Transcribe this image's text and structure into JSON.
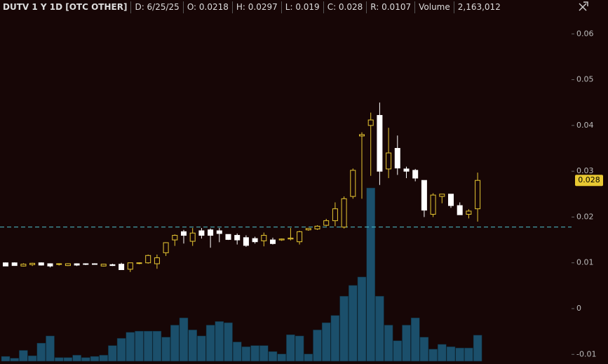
{
  "chart_data": {
    "type": "candlestick",
    "header": [
      "DUTV 1 Y 1D [OTC OTHER]",
      "D: 6/25/25",
      "O: 0.0218",
      "H: 0.0297",
      "L: 0.019",
      "C: 0.028",
      "R: 0.0107",
      "Volume",
      "2,163,012"
    ],
    "open": [
      0.01,
      0.01,
      0.0093,
      0.0096,
      0.01,
      0.0098,
      0.0098,
      0.0094,
      0.0098,
      0.0098,
      0.0098,
      0.0093,
      0.0096,
      0.0097,
      0.0086,
      0.0099,
      0.01,
      0.0098,
      0.0122,
      0.015,
      0.0168,
      0.0147,
      0.017,
      0.0172,
      0.017,
      0.0162,
      0.016,
      0.0155,
      0.0153,
      0.0148,
      0.015,
      0.015,
      0.0152,
      0.0146,
      0.0172,
      0.0174,
      0.0182,
      0.0192,
      0.0178,
      0.0245,
      0.0377,
      0.04,
      0.0422,
      0.0305,
      0.035,
      0.0305,
      0.0302,
      0.028,
      0.0206,
      0.0245,
      0.025,
      0.0225,
      0.0206,
      0.0218
    ],
    "high": [
      0.0101,
      0.0101,
      0.0099,
      0.01,
      0.0101,
      0.0099,
      0.0099,
      0.0099,
      0.0099,
      0.0099,
      0.0099,
      0.0098,
      0.0098,
      0.01,
      0.01,
      0.0101,
      0.0118,
      0.0118,
      0.0145,
      0.0162,
      0.0172,
      0.0176,
      0.0176,
      0.0175,
      0.0176,
      0.0162,
      0.0164,
      0.016,
      0.0157,
      0.0166,
      0.0155,
      0.0153,
      0.0176,
      0.017,
      0.0175,
      0.0182,
      0.0196,
      0.0232,
      0.0245,
      0.0306,
      0.0385,
      0.0428,
      0.045,
      0.0395,
      0.0378,
      0.031,
      0.0305,
      0.028,
      0.0252,
      0.025,
      0.025,
      0.0232,
      0.0217,
      0.0297
    ],
    "low": [
      0.0093,
      0.0094,
      0.0092,
      0.0093,
      0.0094,
      0.009,
      0.0094,
      0.0093,
      0.0093,
      0.0095,
      0.0096,
      0.0092,
      0.0093,
      0.0086,
      0.008,
      0.0097,
      0.0098,
      0.0087,
      0.0115,
      0.0137,
      0.0142,
      0.0137,
      0.0153,
      0.0133,
      0.0145,
      0.015,
      0.014,
      0.0135,
      0.0142,
      0.0136,
      0.014,
      0.0148,
      0.0149,
      0.014,
      0.017,
      0.0172,
      0.018,
      0.018,
      0.0175,
      0.024,
      0.024,
      0.029,
      0.027,
      0.0285,
      0.0292,
      0.0285,
      0.0278,
      0.02,
      0.02,
      0.023,
      0.022,
      0.0205,
      0.0197,
      0.019
    ],
    "close": [
      0.0093,
      0.0094,
      0.0097,
      0.0099,
      0.0095,
      0.0093,
      0.0098,
      0.0098,
      0.0095,
      0.0097,
      0.0097,
      0.0097,
      0.0094,
      0.0085,
      0.01,
      0.01,
      0.0116,
      0.0111,
      0.0144,
      0.016,
      0.016,
      0.0165,
      0.016,
      0.016,
      0.0164,
      0.0151,
      0.015,
      0.0138,
      0.0146,
      0.016,
      0.0142,
      0.0152,
      0.0154,
      0.0168,
      0.0175,
      0.018,
      0.0192,
      0.0218,
      0.024,
      0.0302,
      0.038,
      0.0412,
      0.03,
      0.034,
      0.0307,
      0.03,
      0.0285,
      0.0215,
      0.0248,
      0.025,
      0.0225,
      0.0205,
      0.0213,
      0.028
    ],
    "volume": [
      400000,
      250000,
      900000,
      450000,
      1500000,
      2100000,
      300000,
      300000,
      500000,
      300000,
      400000,
      500000,
      1300000,
      1900000,
      2400000,
      2500000,
      2500000,
      2500000,
      2000000,
      3000000,
      3600000,
      2600000,
      2100000,
      3000000,
      3300000,
      3200000,
      1600000,
      1200000,
      1300000,
      1300000,
      800000,
      600000,
      2200000,
      2100000,
      600000,
      2600000,
      3200000,
      3800000,
      5400000,
      6300000,
      7000000,
      14400000,
      5400000,
      3000000,
      1700000,
      3000000,
      3600000,
      2000000,
      1000000,
      1400000,
      1200000,
      1100000,
      1100000,
      2163012
    ],
    "up_color": "#e8c832",
    "down_color": "#ffffff",
    "volume_color": "#1b4f6b",
    "ref_line": 0.0178,
    "ref_line_color": "#4fc3d0",
    "last_price": 0.028,
    "ylim": [
      -0.0121,
      0.0674
    ],
    "yticks": [
      0.06,
      0.05,
      0.04,
      0.03,
      0.02,
      0.01,
      0,
      -0.01
    ]
  }
}
